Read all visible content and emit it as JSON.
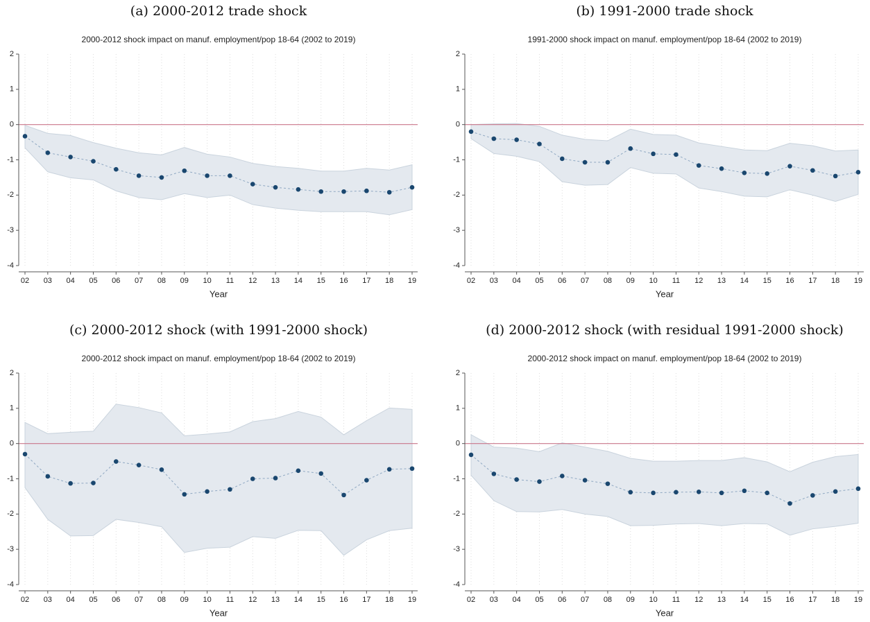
{
  "chart_data": [
    {
      "type": "line",
      "caption": "(a) 2000-2012 trade shock",
      "title": "2000-2012 shock impact on manuf. employment/pop 18-64 (2002 to 2019)",
      "x_label": "Year",
      "categories": [
        "02",
        "03",
        "04",
        "05",
        "06",
        "07",
        "08",
        "09",
        "10",
        "11",
        "12",
        "13",
        "14",
        "15",
        "16",
        "17",
        "18",
        "19"
      ],
      "values": [
        -0.33,
        -0.8,
        -0.92,
        -1.04,
        -1.27,
        -1.45,
        -1.5,
        -1.31,
        -1.45,
        -1.45,
        -1.69,
        -1.78,
        -1.84,
        -1.9,
        -1.9,
        -1.88,
        -1.92,
        -1.78
      ],
      "upper": [
        -0.02,
        -0.25,
        -0.31,
        -0.51,
        -0.67,
        -0.8,
        -0.86,
        -0.65,
        -0.84,
        -0.92,
        -1.1,
        -1.19,
        -1.24,
        -1.32,
        -1.32,
        -1.24,
        -1.29,
        -1.14
      ],
      "lower": [
        -0.66,
        -1.34,
        -1.51,
        -1.57,
        -1.88,
        -2.07,
        -2.13,
        -1.96,
        -2.07,
        -2,
        -2.27,
        -2.37,
        -2.43,
        -2.47,
        -2.47,
        -2.47,
        -2.56,
        -2.41
      ],
      "ylim": [
        -4,
        2
      ],
      "yticks": [
        -4,
        -3,
        -2,
        -1,
        0,
        1,
        2
      ],
      "hline": 0,
      "grid": "x",
      "color": "#1a476f",
      "band_color": "#e4e9ef",
      "hline_color": "#c9768a"
    },
    {
      "type": "line",
      "caption": "(b) 1991-2000 trade shock",
      "title": "1991-2000 shock impact on manuf. employment/pop 18-64 (2002 to 2019)",
      "x_label": "Year",
      "categories": [
        "02",
        "03",
        "04",
        "05",
        "06",
        "07",
        "08",
        "09",
        "10",
        "11",
        "12",
        "13",
        "14",
        "15",
        "16",
        "17",
        "18",
        "19"
      ],
      "values": [
        -0.2,
        -0.4,
        -0.43,
        -0.55,
        -0.97,
        -1.07,
        -1.07,
        -0.68,
        -0.83,
        -0.85,
        -1.16,
        -1.25,
        -1.37,
        -1.39,
        -1.18,
        -1.3,
        -1.46,
        -1.35
      ],
      "upper": [
        0,
        0.02,
        0.03,
        -0.05,
        -0.3,
        -0.42,
        -0.46,
        -0.13,
        -0.28,
        -0.3,
        -0.52,
        -0.62,
        -0.72,
        -0.74,
        -0.53,
        -0.6,
        -0.75,
        -0.72
      ],
      "lower": [
        -0.4,
        -0.82,
        -0.9,
        -1.05,
        -1.62,
        -1.72,
        -1.7,
        -1.22,
        -1.38,
        -1.4,
        -1.8,
        -1.9,
        -2.03,
        -2.05,
        -1.85,
        -2,
        -2.18,
        -1.98
      ],
      "ylim": [
        -4,
        2
      ],
      "yticks": [
        -4,
        -3,
        -2,
        -1,
        0,
        1,
        2
      ],
      "hline": 0,
      "grid": "x",
      "color": "#1a476f",
      "band_color": "#e4e9ef",
      "hline_color": "#c9768a"
    },
    {
      "type": "line",
      "caption": "(c) 2000-2012 shock (with 1991-2000 shock)",
      "title": "2000-2012 shock impact on manuf. employment/pop 18-64 (2002 to 2019)",
      "x_label": "Year",
      "categories": [
        "02",
        "03",
        "04",
        "05",
        "06",
        "07",
        "08",
        "09",
        "10",
        "11",
        "12",
        "13",
        "14",
        "15",
        "16",
        "17",
        "18",
        "19"
      ],
      "values": [
        -0.3,
        -0.93,
        -1.13,
        -1.12,
        -0.51,
        -0.61,
        -0.74,
        -1.44,
        -1.36,
        -1.3,
        -1,
        -0.98,
        -0.77,
        -0.85,
        -1.46,
        -1.04,
        -0.73,
        -0.71
      ],
      "upper": [
        0.6,
        0.28,
        0.32,
        0.35,
        1.12,
        1.02,
        0.87,
        0.22,
        0.27,
        0.33,
        0.62,
        0.71,
        0.91,
        0.75,
        0.25,
        0.65,
        1.01,
        0.97
      ],
      "lower": [
        -1.25,
        -2.15,
        -2.62,
        -2.61,
        -2.15,
        -2.24,
        -2.36,
        -3.09,
        -2.97,
        -2.94,
        -2.64,
        -2.69,
        -2.46,
        -2.47,
        -3.17,
        -2.73,
        -2.47,
        -2.4
      ],
      "ylim": [
        -4,
        2
      ],
      "yticks": [
        -4,
        -3,
        -2,
        -1,
        0,
        1,
        2
      ],
      "hline": 0,
      "grid": "x",
      "color": "#1a476f",
      "band_color": "#e4e9ef",
      "hline_color": "#c9768a"
    },
    {
      "type": "line",
      "caption": "(d) 2000-2012 shock (with residual 1991-2000 shock)",
      "title": "2000-2012 shock impact on manuf. employment/pop 18-64 (2002 to 2019)",
      "x_label": "Year",
      "categories": [
        "02",
        "03",
        "04",
        "05",
        "06",
        "07",
        "08",
        "09",
        "10",
        "11",
        "12",
        "13",
        "14",
        "15",
        "16",
        "17",
        "18",
        "19"
      ],
      "values": [
        -0.32,
        -0.86,
        -1.02,
        -1.08,
        -0.92,
        -1.04,
        -1.14,
        -1.38,
        -1.4,
        -1.38,
        -1.37,
        -1.4,
        -1.34,
        -1.4,
        -1.7,
        -1.47,
        -1.36,
        -1.28
      ],
      "upper": [
        0.25,
        -0.1,
        -0.13,
        -0.23,
        0.02,
        -0.1,
        -0.22,
        -0.42,
        -0.5,
        -0.5,
        -0.48,
        -0.48,
        -0.4,
        -0.52,
        -0.8,
        -0.53,
        -0.37,
        -0.31
      ],
      "lower": [
        -0.9,
        -1.62,
        -1.93,
        -1.94,
        -1.87,
        -2,
        -2.07,
        -2.33,
        -2.32,
        -2.28,
        -2.27,
        -2.33,
        -2.27,
        -2.28,
        -2.6,
        -2.42,
        -2.35,
        -2.26
      ],
      "ylim": [
        -4,
        2
      ],
      "yticks": [
        -4,
        -3,
        -2,
        -1,
        0,
        1,
        2
      ],
      "hline": 0,
      "grid": "x",
      "color": "#1a476f",
      "band_color": "#e4e9ef",
      "hline_color": "#c9768a"
    }
  ]
}
